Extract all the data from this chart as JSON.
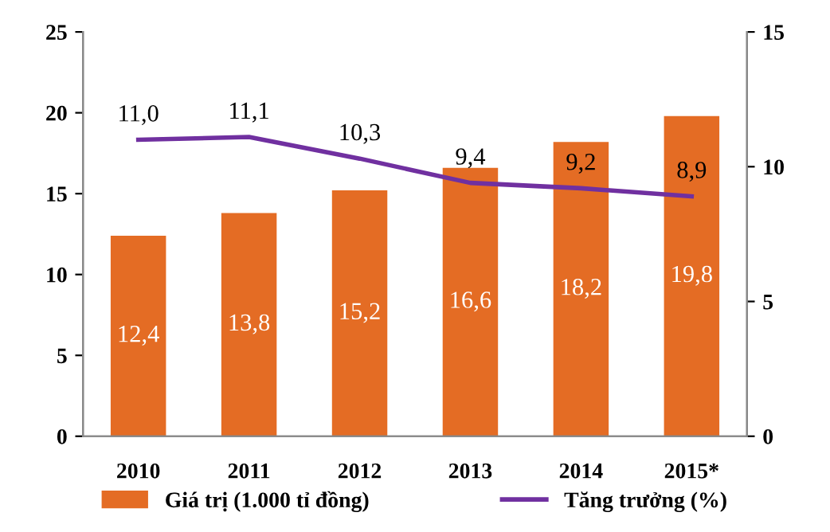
{
  "chart_data": {
    "type": "bar",
    "categories": [
      "2010",
      "2011",
      "2012",
      "2013",
      "2014",
      "2015*"
    ],
    "series": [
      {
        "name": "Giá trị (1.000 tỉ đồng)",
        "color": "#e46c24",
        "values": [
          12.4,
          13.8,
          15.2,
          16.6,
          18.2,
          19.8
        ],
        "value_labels": [
          "12,4",
          "13,8",
          "15,2",
          "16,6",
          "18,2",
          "19,8"
        ]
      },
      {
        "name": "Tăng trưởng (%)",
        "type": "line",
        "axis": "y2",
        "color": "#7030a0",
        "values": [
          11.0,
          11.1,
          10.3,
          9.4,
          9.2,
          8.9
        ],
        "value_labels": [
          "11,0",
          "11,1",
          "10,3",
          "9,4",
          "9,2",
          "8,9"
        ]
      }
    ],
    "ylim": [
      0,
      25
    ],
    "yticks": [
      0,
      5,
      10,
      15,
      20,
      25
    ],
    "y2lim": [
      0,
      15
    ],
    "y2ticks": [
      0,
      5,
      10,
      15
    ],
    "grid": false,
    "legend": "bottom",
    "marker": "none",
    "line_style": "solid"
  }
}
